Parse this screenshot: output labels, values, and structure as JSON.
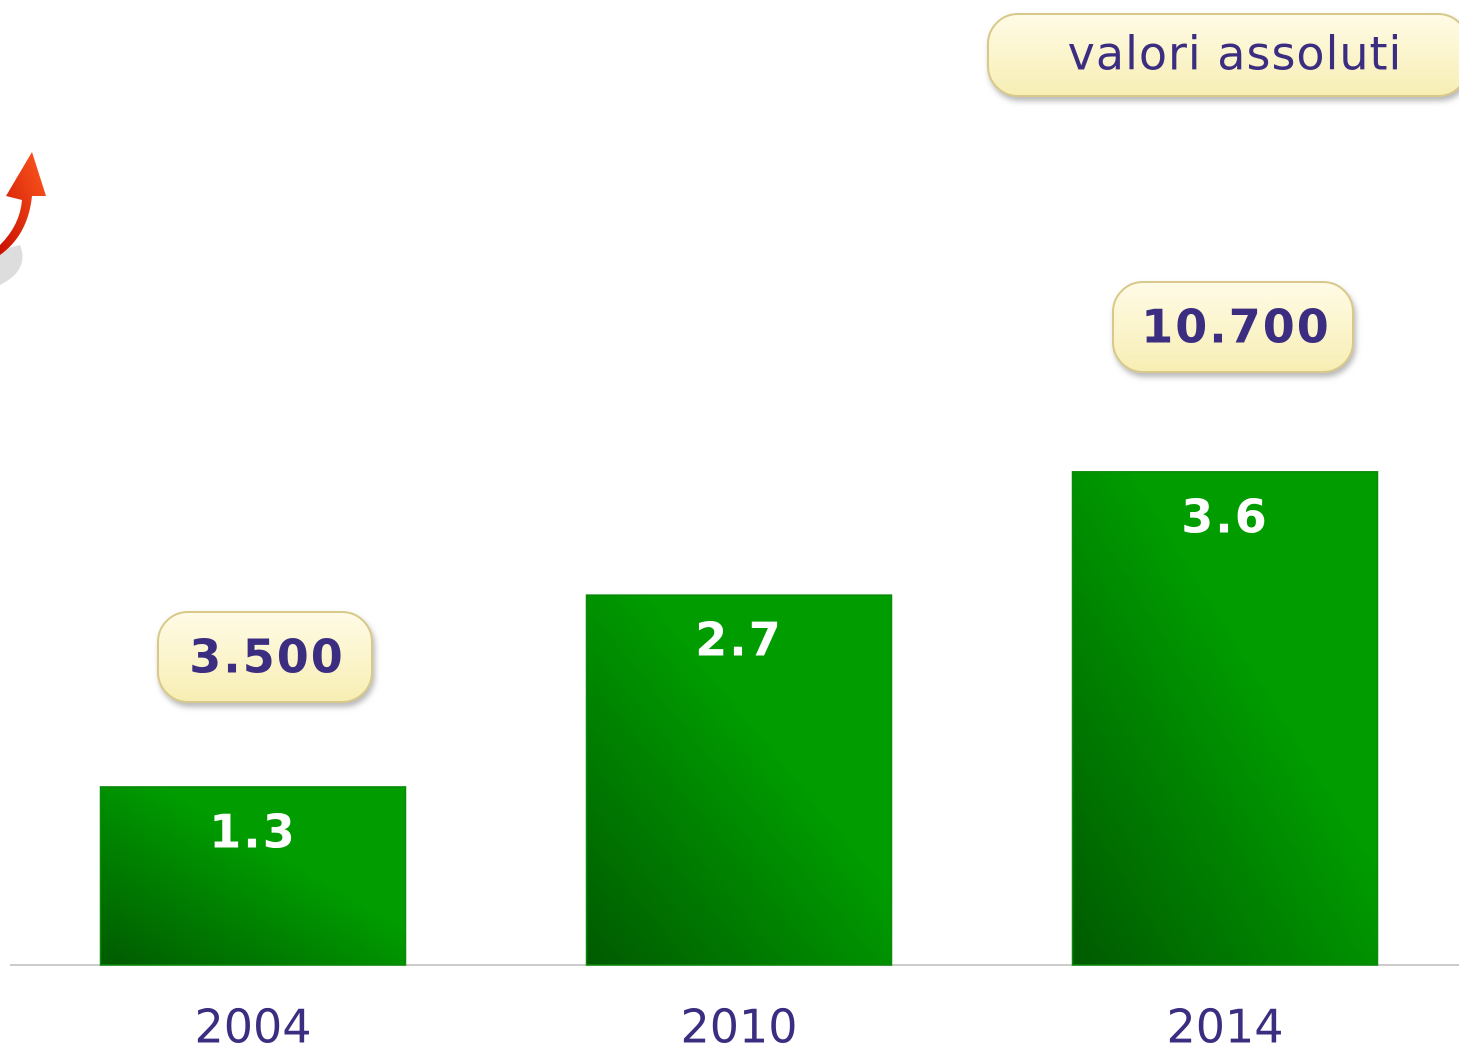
{
  "chart_data": {
    "type": "bar",
    "categories": [
      "2004",
      "2010",
      "2014"
    ],
    "values": [
      1.3,
      2.7,
      3.6
    ],
    "color": "#009c00",
    "ylim": [
      0,
      7
    ],
    "annotations": [
      "valori assoluti",
      "3.500",
      "10.700"
    ]
  }
}
